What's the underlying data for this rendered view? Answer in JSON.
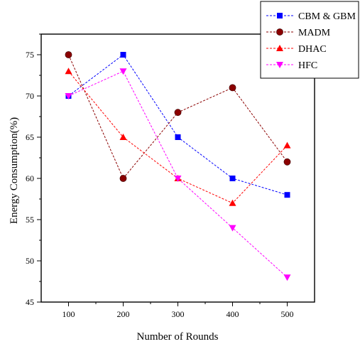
{
  "chart_data": {
    "type": "line",
    "xlabel": "Number of Rounds",
    "ylabel": "Energy Consumption(%)",
    "x": [
      100,
      200,
      300,
      400,
      500
    ],
    "xlim": [
      50,
      550
    ],
    "ylim": [
      45,
      77.5
    ],
    "xticks": [
      100,
      200,
      300,
      400,
      500
    ],
    "yticks": [
      45,
      50,
      55,
      60,
      65,
      70,
      75
    ],
    "grid": false,
    "legend_position": "top-right",
    "series": [
      {
        "name": "CBM & GBM",
        "values": [
          70,
          75,
          65,
          60,
          58
        ],
        "color": "#0000ff",
        "marker": "square"
      },
      {
        "name": "MADM",
        "values": [
          75,
          60,
          68,
          71,
          62
        ],
        "color": "#8b0000",
        "marker": "circle"
      },
      {
        "name": "DHAC",
        "values": [
          73,
          65,
          60,
          57,
          64
        ],
        "color": "#ff0000",
        "marker": "triangle-up"
      },
      {
        "name": "HFC",
        "values": [
          70,
          73,
          60,
          54,
          48
        ],
        "color": "#ff00ff",
        "marker": "triangle-down"
      }
    ]
  }
}
